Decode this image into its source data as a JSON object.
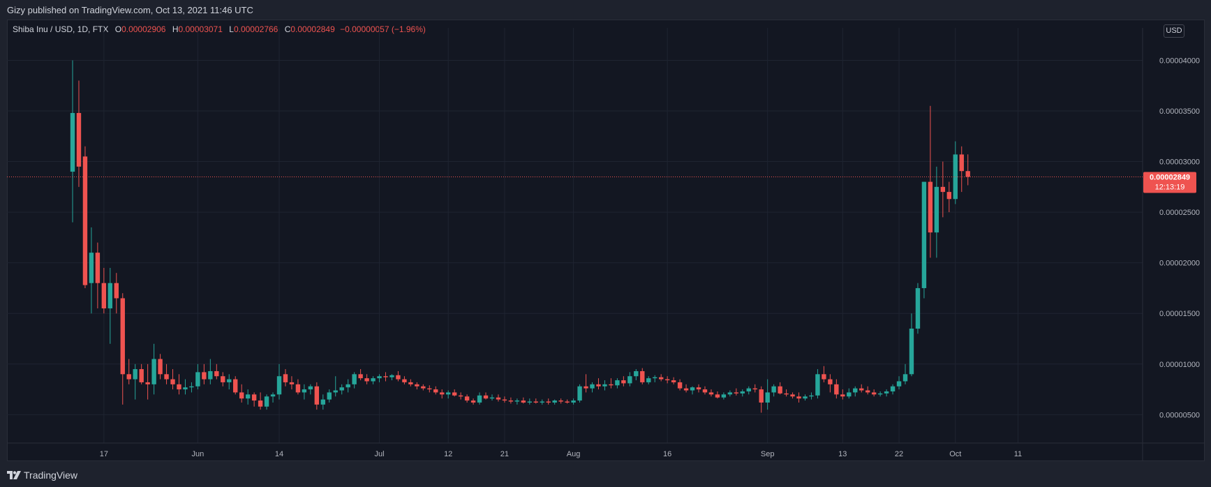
{
  "header": {
    "published": "Gizy published on TradingView.com, Oct 13, 2021 11:46 UTC"
  },
  "legend": {
    "symbol": "Shiba Inu / USD, 1D, FTX",
    "o_label": "O",
    "o_value": "0.00002906",
    "h_label": "H",
    "h_value": "0.00003071",
    "l_label": "L",
    "l_value": "0.00002766",
    "c_label": "C",
    "c_value": "0.00002849",
    "change": "−0.00000057 (−1.96%)"
  },
  "currency_button": "USD",
  "last_price": {
    "value": "0.00002849",
    "countdown": "12:13:19",
    "price": 2.849e-05
  },
  "brand": {
    "name": "TradingView"
  },
  "colors": {
    "up": "#26a69a",
    "down": "#ef5350",
    "background": "#131722",
    "grid": "#1f2431"
  },
  "chart_data": {
    "type": "candlestick",
    "symbol": "SHIB/USD",
    "interval": "1D",
    "y_ticks": [
      5e-06,
      1e-05,
      1.5e-05,
      2e-05,
      2.5e-05,
      3e-05,
      3.5e-05,
      4e-05
    ],
    "y_tick_labels": [
      "0.00000500",
      "0.00001000",
      "0.00001500",
      "0.00002000",
      "0.00002500",
      "0.00003000",
      "0.00003500",
      "0.00004000"
    ],
    "ylim": [
      2.2e-06,
      4.32e-05
    ],
    "x_ticks": [
      {
        "index": 5,
        "label": "17"
      },
      {
        "index": 20,
        "label": "Jun"
      },
      {
        "index": 33,
        "label": "14"
      },
      {
        "index": 49,
        "label": "Jul"
      },
      {
        "index": 60,
        "label": "12"
      },
      {
        "index": 69,
        "label": "21"
      },
      {
        "index": 80,
        "label": "Aug"
      },
      {
        "index": 95,
        "label": "16"
      },
      {
        "index": 111,
        "label": "Sep"
      },
      {
        "index": 123,
        "label": "13"
      },
      {
        "index": 132,
        "label": "22"
      },
      {
        "index": 141,
        "label": "Oct"
      },
      {
        "index": 151,
        "label": "11"
      }
    ],
    "candles": [
      [
        2.9,
        4.0,
        2.4,
        3.48
      ],
      [
        3.48,
        3.8,
        2.75,
        2.95
      ],
      [
        3.05,
        3.15,
        1.75,
        1.78
      ],
      [
        1.8,
        2.35,
        1.5,
        2.1
      ],
      [
        2.1,
        2.2,
        1.55,
        1.8
      ],
      [
        1.8,
        1.95,
        1.5,
        1.55
      ],
      [
        1.55,
        1.95,
        1.2,
        1.8
      ],
      [
        1.8,
        1.9,
        1.5,
        1.65
      ],
      [
        1.65,
        1.7,
        0.6,
        0.9
      ],
      [
        0.9,
        1.05,
        0.8,
        0.85
      ],
      [
        0.85,
        1.0,
        0.65,
        0.95
      ],
      [
        0.95,
        1.0,
        0.8,
        0.82
      ],
      [
        0.82,
        1.0,
        0.65,
        0.8
      ],
      [
        0.8,
        1.2,
        0.7,
        1.05
      ],
      [
        1.05,
        1.1,
        0.85,
        0.9
      ],
      [
        0.9,
        1.0,
        0.8,
        0.85
      ],
      [
        0.85,
        0.95,
        0.75,
        0.8
      ],
      [
        0.8,
        0.9,
        0.7,
        0.75
      ],
      [
        0.75,
        0.85,
        0.7,
        0.77
      ],
      [
        0.77,
        0.82,
        0.72,
        0.78
      ],
      [
        0.78,
        1.0,
        0.75,
        0.92
      ],
      [
        0.92,
        1.0,
        0.8,
        0.85
      ],
      [
        0.85,
        1.05,
        0.8,
        0.93
      ],
      [
        0.93,
        1.0,
        0.85,
        0.88
      ],
      [
        0.88,
        0.92,
        0.78,
        0.82
      ],
      [
        0.82,
        0.9,
        0.75,
        0.85
      ],
      [
        0.85,
        0.88,
        0.7,
        0.72
      ],
      [
        0.72,
        0.8,
        0.62,
        0.66
      ],
      [
        0.66,
        0.75,
        0.6,
        0.7
      ],
      [
        0.7,
        0.72,
        0.58,
        0.64
      ],
      [
        0.64,
        0.72,
        0.55,
        0.58
      ],
      [
        0.58,
        0.7,
        0.55,
        0.68
      ],
      [
        0.68,
        0.72,
        0.62,
        0.7
      ],
      [
        0.7,
        1.0,
        0.65,
        0.88
      ],
      [
        0.9,
        0.95,
        0.78,
        0.82
      ],
      [
        0.82,
        0.88,
        0.75,
        0.8
      ],
      [
        0.8,
        0.85,
        0.7,
        0.72
      ],
      [
        0.72,
        0.8,
        0.65,
        0.75
      ],
      [
        0.75,
        0.8,
        0.7,
        0.78
      ],
      [
        0.78,
        0.82,
        0.55,
        0.6
      ],
      [
        0.6,
        0.7,
        0.55,
        0.65
      ],
      [
        0.65,
        0.75,
        0.62,
        0.72
      ],
      [
        0.72,
        0.88,
        0.68,
        0.74
      ],
      [
        0.74,
        0.8,
        0.7,
        0.77
      ],
      [
        0.77,
        0.85,
        0.72,
        0.8
      ],
      [
        0.8,
        0.92,
        0.76,
        0.9
      ],
      [
        0.9,
        0.95,
        0.84,
        0.86
      ],
      [
        0.86,
        0.9,
        0.8,
        0.83
      ],
      [
        0.83,
        0.88,
        0.8,
        0.86
      ],
      [
        0.86,
        0.9,
        0.82,
        0.88
      ],
      [
        0.88,
        0.92,
        0.83,
        0.87
      ],
      [
        0.87,
        0.9,
        0.84,
        0.89
      ],
      [
        0.89,
        0.93,
        0.83,
        0.85
      ],
      [
        0.85,
        0.88,
        0.8,
        0.82
      ],
      [
        0.82,
        0.85,
        0.78,
        0.8
      ],
      [
        0.8,
        0.82,
        0.75,
        0.78
      ],
      [
        0.78,
        0.8,
        0.74,
        0.76
      ],
      [
        0.76,
        0.79,
        0.72,
        0.75
      ],
      [
        0.75,
        0.78,
        0.7,
        0.72
      ],
      [
        0.72,
        0.75,
        0.66,
        0.7
      ],
      [
        0.7,
        0.74,
        0.66,
        0.72
      ],
      [
        0.72,
        0.75,
        0.68,
        0.69
      ],
      [
        0.69,
        0.72,
        0.65,
        0.68
      ],
      [
        0.68,
        0.7,
        0.62,
        0.64
      ],
      [
        0.64,
        0.66,
        0.6,
        0.62
      ],
      [
        0.62,
        0.72,
        0.6,
        0.69
      ],
      [
        0.69,
        0.72,
        0.65,
        0.66
      ],
      [
        0.66,
        0.7,
        0.64,
        0.67
      ],
      [
        0.67,
        0.7,
        0.63,
        0.65
      ],
      [
        0.65,
        0.68,
        0.62,
        0.64
      ],
      [
        0.64,
        0.67,
        0.61,
        0.63
      ],
      [
        0.63,
        0.66,
        0.6,
        0.64
      ],
      [
        0.64,
        0.67,
        0.61,
        0.62
      ],
      [
        0.62,
        0.66,
        0.6,
        0.63
      ],
      [
        0.63,
        0.66,
        0.61,
        0.62
      ],
      [
        0.62,
        0.65,
        0.6,
        0.63
      ],
      [
        0.63,
        0.66,
        0.6,
        0.62
      ],
      [
        0.62,
        0.65,
        0.6,
        0.64
      ],
      [
        0.64,
        0.66,
        0.61,
        0.63
      ],
      [
        0.63,
        0.65,
        0.61,
        0.62
      ],
      [
        0.62,
        0.66,
        0.6,
        0.64
      ],
      [
        0.64,
        0.8,
        0.62,
        0.78
      ],
      [
        0.78,
        0.9,
        0.72,
        0.76
      ],
      [
        0.76,
        0.82,
        0.72,
        0.8
      ],
      [
        0.8,
        0.86,
        0.75,
        0.78
      ],
      [
        0.78,
        0.84,
        0.74,
        0.8
      ],
      [
        0.8,
        0.86,
        0.76,
        0.79
      ],
      [
        0.79,
        0.86,
        0.76,
        0.84
      ],
      [
        0.84,
        0.88,
        0.78,
        0.81
      ],
      [
        0.81,
        0.92,
        0.78,
        0.88
      ],
      [
        0.88,
        0.95,
        0.84,
        0.93
      ],
      [
        0.93,
        0.96,
        0.8,
        0.82
      ],
      [
        0.82,
        0.88,
        0.8,
        0.86
      ],
      [
        0.86,
        0.89,
        0.82,
        0.87
      ],
      [
        0.87,
        0.9,
        0.83,
        0.85
      ],
      [
        0.85,
        0.88,
        0.81,
        0.84
      ],
      [
        0.84,
        0.87,
        0.8,
        0.82
      ],
      [
        0.82,
        0.85,
        0.74,
        0.76
      ],
      [
        0.76,
        0.8,
        0.72,
        0.74
      ],
      [
        0.74,
        0.78,
        0.7,
        0.77
      ],
      [
        0.77,
        0.8,
        0.72,
        0.75
      ],
      [
        0.75,
        0.78,
        0.7,
        0.72
      ],
      [
        0.72,
        0.75,
        0.68,
        0.7
      ],
      [
        0.7,
        0.73,
        0.66,
        0.67
      ],
      [
        0.67,
        0.72,
        0.65,
        0.7
      ],
      [
        0.7,
        0.74,
        0.68,
        0.72
      ],
      [
        0.72,
        0.76,
        0.69,
        0.71
      ],
      [
        0.71,
        0.75,
        0.68,
        0.73
      ],
      [
        0.73,
        0.78,
        0.7,
        0.76
      ],
      [
        0.76,
        0.8,
        0.72,
        0.75
      ],
      [
        0.75,
        0.78,
        0.52,
        0.62
      ],
      [
        0.62,
        0.85,
        0.55,
        0.72
      ],
      [
        0.72,
        0.8,
        0.68,
        0.78
      ],
      [
        0.78,
        0.82,
        0.7,
        0.71
      ],
      [
        0.71,
        0.75,
        0.68,
        0.7
      ],
      [
        0.7,
        0.72,
        0.66,
        0.68
      ],
      [
        0.68,
        0.72,
        0.62,
        0.66
      ],
      [
        0.66,
        0.7,
        0.64,
        0.68
      ],
      [
        0.68,
        0.72,
        0.65,
        0.69
      ],
      [
        0.69,
        0.95,
        0.66,
        0.9
      ],
      [
        0.9,
        0.98,
        0.82,
        0.85
      ],
      [
        0.85,
        0.9,
        0.72,
        0.8
      ],
      [
        0.8,
        0.85,
        0.66,
        0.7
      ],
      [
        0.7,
        0.75,
        0.65,
        0.68
      ],
      [
        0.68,
        0.76,
        0.66,
        0.72
      ],
      [
        0.72,
        0.78,
        0.68,
        0.76
      ],
      [
        0.76,
        0.8,
        0.72,
        0.74
      ],
      [
        0.74,
        0.78,
        0.7,
        0.72
      ],
      [
        0.72,
        0.75,
        0.68,
        0.7
      ],
      [
        0.7,
        0.73,
        0.68,
        0.71
      ],
      [
        0.71,
        0.75,
        0.68,
        0.73
      ],
      [
        0.73,
        0.8,
        0.7,
        0.78
      ],
      [
        0.78,
        0.88,
        0.75,
        0.83
      ],
      [
        0.83,
        1.0,
        0.8,
        0.9
      ],
      [
        0.9,
        1.5,
        0.88,
        1.35
      ],
      [
        1.35,
        1.8,
        1.3,
        1.75
      ],
      [
        1.75,
        2.8,
        1.65,
        2.8
      ],
      [
        2.8,
        3.55,
        2.05,
        2.3
      ],
      [
        2.3,
        2.95,
        2.05,
        2.75
      ],
      [
        2.75,
        3.0,
        2.45,
        2.7
      ],
      [
        2.7,
        2.8,
        2.5,
        2.63
      ],
      [
        2.63,
        3.2,
        2.58,
        3.07
      ],
      [
        3.07,
        3.15,
        2.7,
        2.906
      ],
      [
        2.906,
        3.071,
        2.766,
        2.849
      ]
    ]
  }
}
